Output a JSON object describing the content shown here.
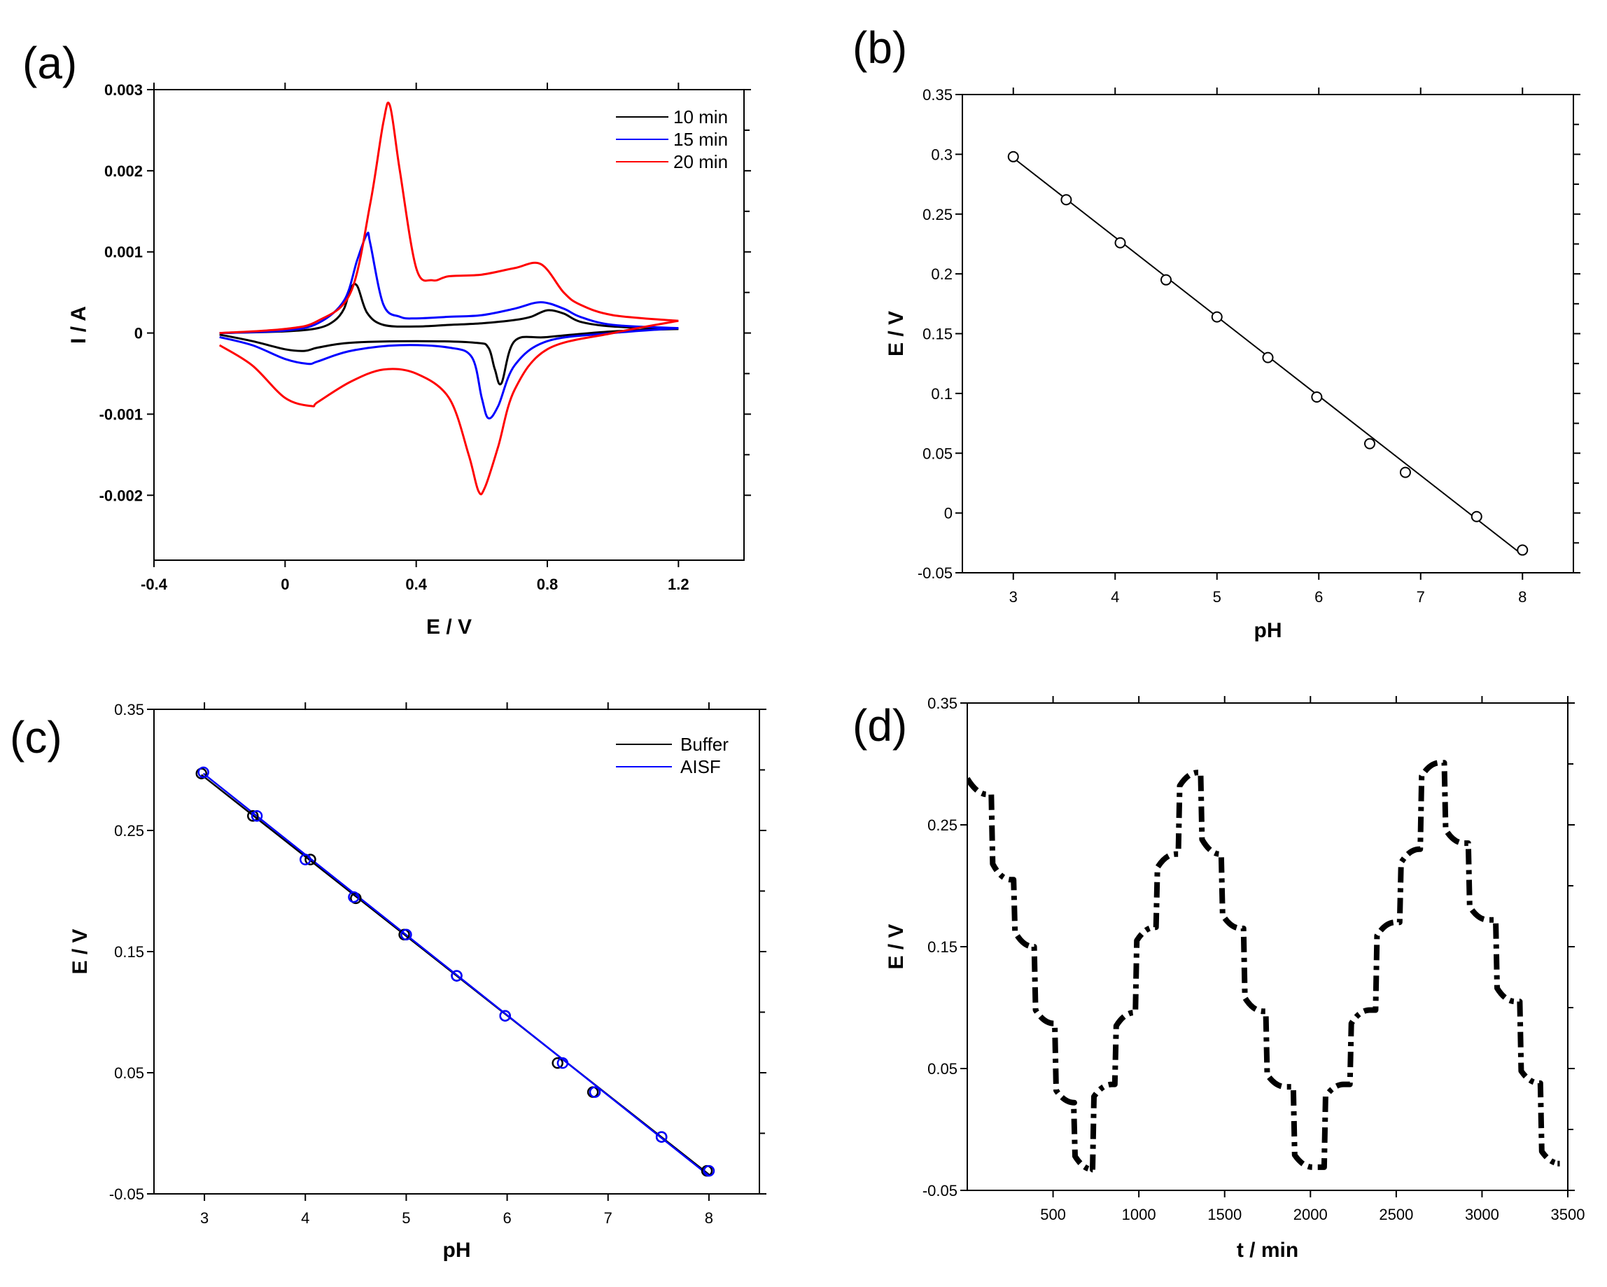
{
  "chart_data": [
    {
      "panel": "(a)",
      "type": "line",
      "title": "",
      "xlabel": "E / V",
      "ylabel": "I / A",
      "xlim": [
        -0.4,
        1.4
      ],
      "ylim": [
        -0.0028,
        0.003
      ],
      "xticks": [
        -0.4,
        0,
        0.4,
        0.8,
        1.2
      ],
      "xtick_labels": [
        "-0.4",
        "0",
        "0.4",
        "0.8",
        "1.2"
      ],
      "yticks": [
        0.003,
        0.002,
        0.001,
        0,
        -0.001,
        -0.002
      ],
      "ytick_labels": [
        "0.003",
        "0.002",
        "0.001",
        "0",
        "-0.001",
        "-0.002"
      ],
      "legend": "top-right",
      "series": [
        {
          "name": "10 min",
          "color": "#000000",
          "forward": {
            "x": [
              -0.2,
              0.0,
              0.1,
              0.15,
              0.18,
              0.2,
              0.22,
              0.25,
              0.3,
              0.4,
              0.5,
              0.6,
              0.7,
              0.75,
              0.8,
              0.85,
              0.9,
              1.0,
              1.2
            ],
            "y": [
              0.0,
              2e-05,
              6e-05,
              0.00015,
              0.0003,
              0.00055,
              0.00058,
              0.00025,
              0.0001,
              8e-05,
              0.0001,
              0.00012,
              0.00016,
              0.0002,
              0.00028,
              0.00024,
              0.00014,
              8e-05,
              5e-05
            ]
          },
          "reverse": {
            "x": [
              1.2,
              1.0,
              0.8,
              0.7,
              0.66,
              0.64,
              0.62,
              0.58,
              0.4,
              0.2,
              0.1,
              0.06,
              0.0,
              -0.1,
              -0.2
            ],
            "y": [
              5e-05,
              2e-05,
              -5e-05,
              -0.0001,
              -0.00062,
              -0.00045,
              -0.00018,
              -0.00012,
              -0.0001,
              -0.00012,
              -0.00018,
              -0.00022,
              -0.0002,
              -0.0001,
              -2e-05
            ]
          }
        },
        {
          "name": "15 min",
          "color": "#0000ff",
          "forward": {
            "x": [
              -0.2,
              0.0,
              0.1,
              0.18,
              0.22,
              0.25,
              0.26,
              0.3,
              0.35,
              0.4,
              0.5,
              0.6,
              0.7,
              0.78,
              0.85,
              0.9,
              1.0,
              1.2
            ],
            "y": [
              0.0,
              3e-05,
              0.00012,
              0.0004,
              0.0009,
              0.00122,
              0.0011,
              0.00035,
              0.0002,
              0.00018,
              0.0002,
              0.00022,
              0.0003,
              0.00038,
              0.0003,
              0.0002,
              0.0001,
              6e-05
            ]
          },
          "reverse": {
            "x": [
              1.2,
              1.0,
              0.8,
              0.7,
              0.65,
              0.62,
              0.6,
              0.57,
              0.5,
              0.35,
              0.2,
              0.1,
              0.07,
              0.0,
              -0.1,
              -0.2
            ],
            "y": [
              6e-05,
              0.0,
              -0.0001,
              -0.0004,
              -0.0009,
              -0.00105,
              -0.0008,
              -0.0003,
              -0.00018,
              -0.00015,
              -0.00022,
              -0.00035,
              -0.00038,
              -0.00032,
              -0.00015,
              -5e-05
            ]
          }
        },
        {
          "name": "20 min",
          "color": "#ff0000",
          "forward": {
            "x": [
              -0.2,
              0.0,
              0.1,
              0.2,
              0.26,
              0.3,
              0.32,
              0.35,
              0.4,
              0.45,
              0.5,
              0.6,
              0.7,
              0.78,
              0.85,
              0.9,
              1.0,
              1.2
            ],
            "y": [
              0.0,
              5e-05,
              0.00015,
              0.0005,
              0.0016,
              0.0026,
              0.0028,
              0.002,
              0.0008,
              0.00065,
              0.0007,
              0.00072,
              0.0008,
              0.00085,
              0.0005,
              0.00035,
              0.00022,
              0.00015
            ]
          },
          "reverse": {
            "x": [
              1.2,
              1.0,
              0.8,
              0.7,
              0.65,
              0.61,
              0.59,
              0.56,
              0.5,
              0.4,
              0.3,
              0.2,
              0.1,
              0.08,
              0.0,
              -0.1,
              -0.2
            ],
            "y": [
              0.00015,
              0.0,
              -0.0002,
              -0.0007,
              -0.0014,
              -0.0019,
              -0.00195,
              -0.0015,
              -0.0008,
              -0.0005,
              -0.00045,
              -0.0006,
              -0.00085,
              -0.0009,
              -0.0008,
              -0.0004,
              -0.00015
            ]
          }
        }
      ]
    },
    {
      "panel": "(b)",
      "type": "scatter",
      "title": "",
      "xlabel": "pH",
      "ylabel": "E / V",
      "xlim": [
        2.5,
        8.5
      ],
      "ylim": [
        -0.05,
        0.35
      ],
      "xticks": [
        3,
        4,
        5,
        6,
        7,
        8
      ],
      "xtick_labels": [
        "3",
        "4",
        "5",
        "6",
        "7",
        "8"
      ],
      "yticks": [
        0.35,
        0.3,
        0.25,
        0.2,
        0.15,
        0.1,
        0.05,
        0,
        -0.05
      ],
      "ytick_labels": [
        "0.35",
        "0.3",
        "0.25",
        "0.2",
        "0.15",
        "0.1",
        "0.05",
        "0",
        "-0.05"
      ],
      "points": {
        "x": [
          3.0,
          3.52,
          4.05,
          4.5,
          5.0,
          5.5,
          5.98,
          6.5,
          6.85,
          7.55,
          8.0
        ],
        "y": [
          0.298,
          0.262,
          0.226,
          0.195,
          0.164,
          0.13,
          0.097,
          0.058,
          0.034,
          -0.003,
          -0.031
        ]
      },
      "fit": {
        "x": [
          3.0,
          8.0
        ],
        "y": [
          0.297,
          -0.035
        ]
      },
      "color": "#000000"
    },
    {
      "panel": "(c)",
      "type": "scatter",
      "title": "",
      "xlabel": "pH",
      "ylabel": "E / V",
      "xlim": [
        2.5,
        8.5
      ],
      "ylim": [
        -0.05,
        0.35
      ],
      "xticks": [
        3,
        4,
        5,
        6,
        7,
        8
      ],
      "xtick_labels": [
        "3",
        "4",
        "5",
        "6",
        "7",
        "8"
      ],
      "yticks": [
        0.35,
        0.25,
        0.15,
        0.05,
        -0.05
      ],
      "ytick_labels": [
        "0.35",
        "0.25",
        "0.15",
        "0.05",
        "-0.05"
      ],
      "legend": "top-right",
      "series": [
        {
          "name": "Buffer",
          "color": "#000000",
          "points": {
            "x": [
              2.97,
              3.48,
              4.05,
              4.5,
              4.98,
              5.5,
              5.98,
              6.5,
              6.85,
              7.53,
              7.98
            ],
            "y": [
              0.297,
              0.262,
              0.226,
              0.194,
              0.164,
              0.13,
              0.097,
              0.058,
              0.034,
              -0.003,
              -0.031
            ]
          },
          "fit": {
            "x": [
              2.97,
              8.0
            ],
            "y": [
              0.296,
              -0.034
            ]
          }
        },
        {
          "name": "AISF",
          "color": "#0000ff",
          "points": {
            "x": [
              2.99,
              3.52,
              4.0,
              4.48,
              5.0,
              5.5,
              5.98,
              6.55,
              6.87,
              7.53,
              8.0
            ],
            "y": [
              0.298,
              0.262,
              0.226,
              0.195,
              0.164,
              0.13,
              0.097,
              0.058,
              0.034,
              -0.003,
              -0.031
            ]
          },
          "fit": {
            "x": [
              2.99,
              8.0
            ],
            "y": [
              0.297,
              -0.035
            ]
          }
        }
      ]
    },
    {
      "panel": "(d)",
      "type": "line",
      "title": "",
      "xlabel": "t / min",
      "ylabel": "E / V",
      "xlim": [
        0,
        3500
      ],
      "ylim": [
        -0.05,
        0.35
      ],
      "xticks": [
        500,
        1000,
        1500,
        2000,
        2500,
        3000,
        3500
      ],
      "xtick_labels": [
        "500",
        "1000",
        "1500",
        "2000",
        "2500",
        "3000",
        "3500"
      ],
      "yticks": [
        0.35,
        0.25,
        0.15,
        0.05,
        -0.05
      ],
      "ytick_labels": [
        "0.35",
        "0.25",
        "0.15",
        "0.05",
        "-0.05"
      ],
      "style": "dash-dot",
      "color": "#000000",
      "plateaus": [
        {
          "t0": 0,
          "t1": 140,
          "E": 0.275,
          "Estart": 0.288
        },
        {
          "t0": 140,
          "t1": 270,
          "E": 0.205,
          "Estart": 0.218
        },
        {
          "t0": 270,
          "t1": 390,
          "E": 0.15,
          "Estart": 0.162
        },
        {
          "t0": 390,
          "t1": 510,
          "E": 0.087,
          "Estart": 0.098
        },
        {
          "t0": 510,
          "t1": 620,
          "E": 0.022,
          "Estart": 0.032
        },
        {
          "t0": 620,
          "t1": 730,
          "E": -0.033,
          "Estart": -0.022
        },
        {
          "t0": 730,
          "t1": 860,
          "E": 0.037,
          "Estart": 0.027
        },
        {
          "t0": 860,
          "t1": 980,
          "E": 0.096,
          "Estart": 0.085
        },
        {
          "t0": 980,
          "t1": 1100,
          "E": 0.166,
          "Estart": 0.155
        },
        {
          "t0": 1100,
          "t1": 1230,
          "E": 0.226,
          "Estart": 0.215
        },
        {
          "t0": 1230,
          "t1": 1360,
          "E": 0.293,
          "Estart": 0.282
        },
        {
          "t0": 1360,
          "t1": 1480,
          "E": 0.226,
          "Estart": 0.238
        },
        {
          "t0": 1480,
          "t1": 1610,
          "E": 0.165,
          "Estart": 0.176
        },
        {
          "t0": 1610,
          "t1": 1740,
          "E": 0.097,
          "Estart": 0.108
        },
        {
          "t0": 1740,
          "t1": 1900,
          "E": 0.035,
          "Estart": 0.045
        },
        {
          "t0": 1900,
          "t1": 2080,
          "E": -0.031,
          "Estart": -0.021
        },
        {
          "t0": 2080,
          "t1": 2230,
          "E": 0.037,
          "Estart": 0.027
        },
        {
          "t0": 2230,
          "t1": 2380,
          "E": 0.098,
          "Estart": 0.087
        },
        {
          "t0": 2380,
          "t1": 2520,
          "E": 0.17,
          "Estart": 0.159
        },
        {
          "t0": 2520,
          "t1": 2640,
          "E": 0.23,
          "Estart": 0.219
        },
        {
          "t0": 2640,
          "t1": 2780,
          "E": 0.301,
          "Estart": 0.29
        },
        {
          "t0": 2780,
          "t1": 2920,
          "E": 0.235,
          "Estart": 0.246
        },
        {
          "t0": 2920,
          "t1": 3080,
          "E": 0.172,
          "Estart": 0.183
        },
        {
          "t0": 3080,
          "t1": 3220,
          "E": 0.105,
          "Estart": 0.116
        },
        {
          "t0": 3220,
          "t1": 3340,
          "E": 0.038,
          "Estart": 0.048
        },
        {
          "t0": 3340,
          "t1": 3440,
          "E": -0.028,
          "Estart": -0.018
        }
      ]
    }
  ]
}
